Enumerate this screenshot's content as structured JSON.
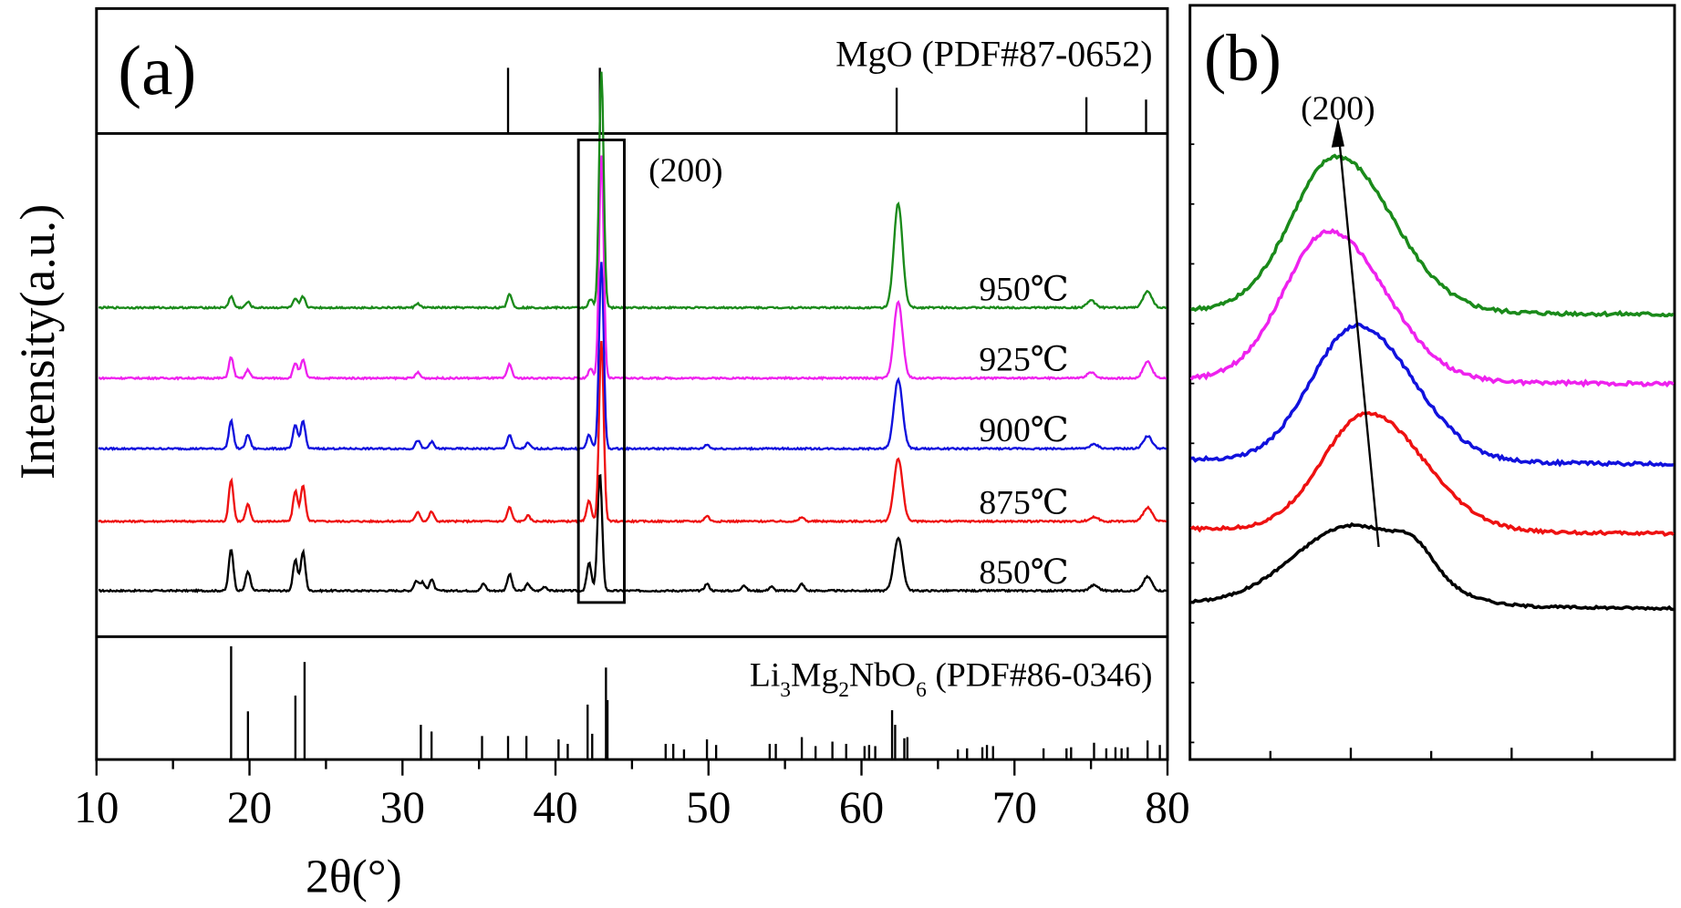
{
  "chart_data": [
    {
      "panel": "(a)",
      "type": "line",
      "title": "",
      "xlabel": "2θ(°)",
      "ylabel": "Intensity(a.u.)",
      "xlim": [
        10,
        80
      ],
      "xticks": [
        10,
        20,
        30,
        40,
        50,
        60,
        70,
        80
      ],
      "grid": false,
      "annotation_box_label": "(200)",
      "annotation_box_range": [
        41.5,
        44.5
      ],
      "series": [
        {
          "name": "850℃",
          "color": "#000000",
          "offset": 0,
          "peaks": [
            [
              18.8,
              0.3
            ],
            [
              19.9,
              0.14
            ],
            [
              23.0,
              0.22
            ],
            [
              23.5,
              0.28
            ],
            [
              30.9,
              0.07
            ],
            [
              31.3,
              0.06
            ],
            [
              31.9,
              0.08
            ],
            [
              35.3,
              0.05
            ],
            [
              37.0,
              0.12
            ],
            [
              38.2,
              0.05
            ],
            [
              39.3,
              0.03
            ],
            [
              42.2,
              0.2
            ],
            [
              42.9,
              0.85
            ],
            [
              49.9,
              0.05
            ],
            [
              52.3,
              0.04
            ],
            [
              54.1,
              0.03
            ],
            [
              56.1,
              0.05
            ],
            [
              62.4,
              0.38
            ],
            [
              75.2,
              0.04
            ],
            [
              78.7,
              0.1
            ]
          ]
        },
        {
          "name": "875℃",
          "color": "#ee1111",
          "offset": 1,
          "peaks": [
            [
              18.8,
              0.3
            ],
            [
              19.9,
              0.12
            ],
            [
              23.0,
              0.22
            ],
            [
              23.5,
              0.26
            ],
            [
              31.0,
              0.07
            ],
            [
              31.9,
              0.07
            ],
            [
              37.0,
              0.1
            ],
            [
              38.2,
              0.04
            ],
            [
              42.2,
              0.15
            ],
            [
              43.0,
              1.3
            ],
            [
              49.9,
              0.04
            ],
            [
              56.1,
              0.03
            ],
            [
              62.4,
              0.45
            ],
            [
              75.2,
              0.03
            ],
            [
              78.7,
              0.1
            ]
          ]
        },
        {
          "name": "900℃",
          "color": "#1111dd",
          "offset": 2,
          "peaks": [
            [
              18.8,
              0.2
            ],
            [
              19.9,
              0.1
            ],
            [
              23.0,
              0.17
            ],
            [
              23.5,
              0.2
            ],
            [
              31.0,
              0.06
            ],
            [
              31.9,
              0.05
            ],
            [
              37.0,
              0.1
            ],
            [
              38.2,
              0.04
            ],
            [
              42.2,
              0.1
            ],
            [
              43.0,
              1.35
            ],
            [
              49.9,
              0.03
            ],
            [
              62.4,
              0.5
            ],
            [
              75.2,
              0.03
            ],
            [
              78.7,
              0.09
            ]
          ]
        },
        {
          "name": "925℃",
          "color": "#ee22ee",
          "offset": 3,
          "peaks": [
            [
              18.8,
              0.15
            ],
            [
              19.9,
              0.06
            ],
            [
              23.0,
              0.11
            ],
            [
              23.5,
              0.13
            ],
            [
              31.0,
              0.04
            ],
            [
              37.0,
              0.1
            ],
            [
              42.3,
              0.07
            ],
            [
              43.0,
              1.6
            ],
            [
              62.4,
              0.55
            ],
            [
              75.0,
              0.04
            ],
            [
              78.7,
              0.12
            ]
          ]
        },
        {
          "name": "950℃",
          "color": "#1a8a1a",
          "offset": 4,
          "peaks": [
            [
              18.8,
              0.08
            ],
            [
              19.9,
              0.04
            ],
            [
              23.0,
              0.06
            ],
            [
              23.5,
              0.08
            ],
            [
              31.0,
              0.03
            ],
            [
              37.0,
              0.1
            ],
            [
              42.3,
              0.06
            ],
            [
              43.0,
              1.7
            ],
            [
              62.4,
              0.75
            ],
            [
              75.0,
              0.05
            ],
            [
              78.7,
              0.12
            ]
          ]
        }
      ],
      "reference_patterns": [
        {
          "label": "MgO (PDF#87-0652)",
          "position": "top",
          "lines": [
            [
              36.9,
              0.55
            ],
            [
              42.9,
              0.55
            ],
            [
              62.3,
              0.38
            ],
            [
              74.7,
              0.3
            ],
            [
              78.6,
              0.28
            ]
          ]
        },
        {
          "label_parts": [
            "Li",
            "3",
            "Mg",
            "2",
            "NbO",
            "6",
            " (PDF#86-0346)"
          ],
          "position": "bottom",
          "lines": [
            [
              18.8,
              1.0
            ],
            [
              19.9,
              0.42
            ],
            [
              23.0,
              0.56
            ],
            [
              23.6,
              0.86
            ],
            [
              31.2,
              0.3
            ],
            [
              31.9,
              0.24
            ],
            [
              35.2,
              0.2
            ],
            [
              36.9,
              0.2
            ],
            [
              38.1,
              0.2
            ],
            [
              40.2,
              0.17
            ],
            [
              40.8,
              0.13
            ],
            [
              42.1,
              0.48
            ],
            [
              42.4,
              0.22
            ],
            [
              43.3,
              0.81
            ],
            [
              43.4,
              0.52
            ],
            [
              47.2,
              0.13
            ],
            [
              47.7,
              0.13
            ],
            [
              48.4,
              0.08
            ],
            [
              49.9,
              0.17
            ],
            [
              50.5,
              0.12
            ],
            [
              54.0,
              0.13
            ],
            [
              54.4,
              0.13
            ],
            [
              56.1,
              0.19
            ],
            [
              57.0,
              0.11
            ],
            [
              58.1,
              0.15
            ],
            [
              59.0,
              0.13
            ],
            [
              60.2,
              0.11
            ],
            [
              60.5,
              0.12
            ],
            [
              60.9,
              0.11
            ],
            [
              62.0,
              0.43
            ],
            [
              62.2,
              0.3
            ],
            [
              62.8,
              0.18
            ],
            [
              63.0,
              0.19
            ],
            [
              66.3,
              0.08
            ],
            [
              66.9,
              0.09
            ],
            [
              67.9,
              0.1
            ],
            [
              68.2,
              0.12
            ],
            [
              68.6,
              0.11
            ],
            [
              71.9,
              0.09
            ],
            [
              73.4,
              0.09
            ],
            [
              73.7,
              0.1
            ],
            [
              75.2,
              0.14
            ],
            [
              76.0,
              0.09
            ],
            [
              76.6,
              0.1
            ],
            [
              77.0,
              0.09
            ],
            [
              77.4,
              0.1
            ],
            [
              78.7,
              0.16
            ],
            [
              79.5,
              0.12
            ]
          ]
        }
      ]
    },
    {
      "panel": "(b)",
      "type": "line",
      "title": "",
      "xlabel": "",
      "ylabel": "",
      "peak_label": "(200)",
      "note": "Zoomed (200) peak region; peak shifts to lower angle with increasing temperature (arrow)",
      "series": [
        {
          "name": "850℃",
          "color": "#000000",
          "baseline": 0.0,
          "peak_pos": 0.33,
          "peak_height": 0.55
        },
        {
          "name": "875℃",
          "color": "#ee1111",
          "baseline": 1.0,
          "peak_pos": 0.36,
          "peak_height": 0.8
        },
        {
          "name": "900℃",
          "color": "#1111dd",
          "baseline": 2.0,
          "peak_pos": 0.34,
          "peak_height": 0.85
        },
        {
          "name": "925℃",
          "color": "#ee22ee",
          "baseline": 3.0,
          "peak_pos": 0.29,
          "peak_height": 1.05
        },
        {
          "name": "950℃",
          "color": "#1a8a1a",
          "baseline": 4.0,
          "peak_pos": 0.3,
          "peak_height": 1.25
        }
      ]
    }
  ]
}
